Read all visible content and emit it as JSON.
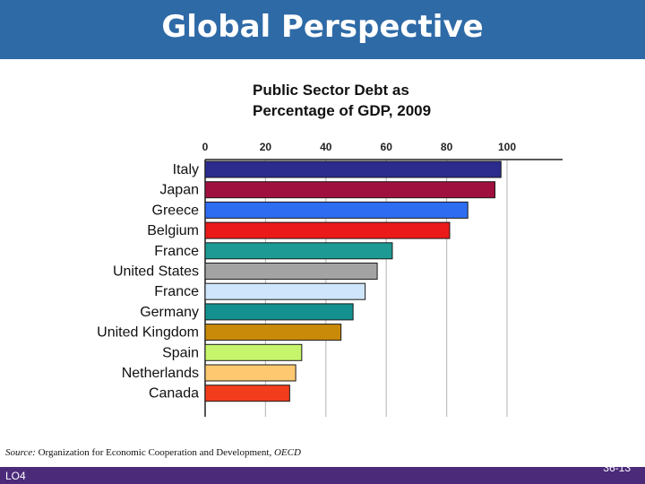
{
  "header": {
    "title": "Global Perspective"
  },
  "chart_data": {
    "type": "bar",
    "orientation": "horizontal",
    "title_lines": [
      "Public Sector Debt as",
      "Percentage of GDP, 2009"
    ],
    "categories": [
      "Italy",
      "Japan",
      "Greece",
      "Belgium",
      "France",
      "United States",
      "France",
      "Germany",
      "United Kingdom",
      "Spain",
      "Netherlands",
      "Canada"
    ],
    "values": [
      98,
      96,
      87,
      81,
      62,
      57,
      53,
      49,
      45,
      32,
      30,
      28
    ],
    "colors": [
      "#2b2b8e",
      "#a0103e",
      "#2e6cf2",
      "#ea1a1a",
      "#1d9a93",
      "#a3a3a3",
      "#cfe5fb",
      "#14918f",
      "#c98a0a",
      "#c6f56b",
      "#fdc870",
      "#f23d1d"
    ],
    "xlim": [
      0,
      100
    ],
    "xticks": [
      "0",
      "20",
      "40",
      "60",
      "80",
      "100"
    ],
    "grid": true,
    "axis_position": "top"
  },
  "source": {
    "label": "Source:",
    "text": "Organization for Economic Cooperation and Development,",
    "publication": "OECD"
  },
  "footer": {
    "lo": "LO4",
    "page": "36-13"
  }
}
